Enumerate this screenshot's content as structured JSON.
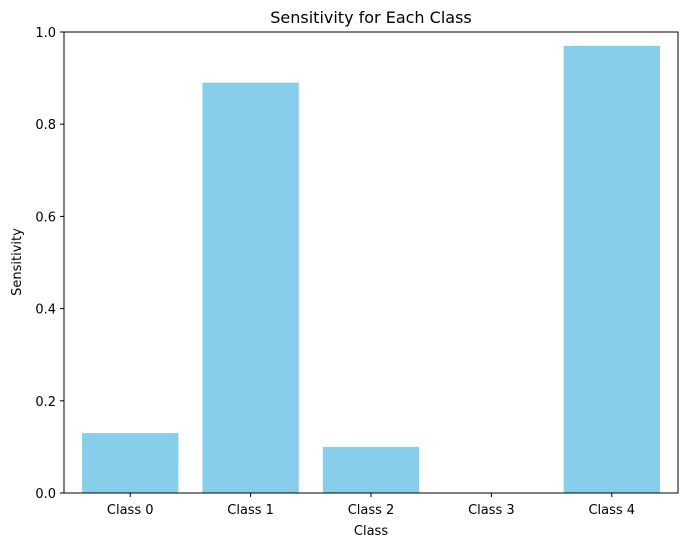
{
  "chart_data": {
    "type": "bar",
    "title": "Sensitivity for Each Class",
    "xlabel": "Class",
    "ylabel": "Sensitivity",
    "categories": [
      "Class 0",
      "Class 1",
      "Class 2",
      "Class 3",
      "Class 4"
    ],
    "values": [
      0.13,
      0.89,
      0.1,
      0.0,
      0.97
    ],
    "ylim": [
      0,
      1.0
    ],
    "yticks": [
      "0.0",
      "0.2",
      "0.4",
      "0.6",
      "0.8",
      "1.0"
    ],
    "grid": false,
    "bar_color": "#87ceeb"
  }
}
